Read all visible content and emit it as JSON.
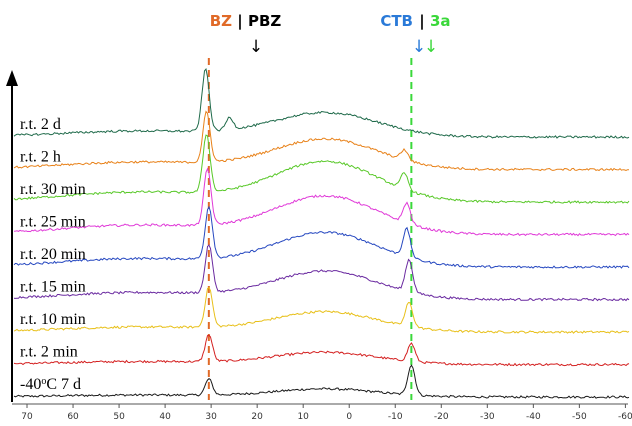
{
  "chart_data": {
    "type": "line",
    "title": "",
    "xlabel": "",
    "ylabel": "",
    "x_axis": {
      "reversed": true,
      "xlim": [
        75,
        -61
      ],
      "ticks": [
        70,
        60,
        50,
        40,
        30,
        20,
        10,
        0,
        -10,
        -20,
        -30,
        -40,
        -50,
        -60
      ],
      "tick_labels": [
        "70",
        "60",
        "50",
        "40",
        "30",
        "20",
        "10",
        "0",
        "-10",
        "-20",
        "-30",
        "-40",
        "-50",
        "-60"
      ]
    },
    "grid": false,
    "series": [
      {
        "name": "-40°C 7 d",
        "label_main": "-40",
        "label_sup": "o",
        "label_rest": "C 7 d",
        "color": "#1a1a1a",
        "peaks": [
          {
            "x": 30.5,
            "h": 16
          },
          {
            "x": -13.5,
            "h": 30
          }
        ],
        "hump": 8,
        "x_features": [
          30.5,
          -13.5
        ]
      },
      {
        "name": "r.t. 2 min",
        "label_main": "r.t. 2 min",
        "color": "#d42020",
        "peaks": [
          {
            "x": 30.5,
            "h": 27
          },
          {
            "x": -13.5,
            "h": 18
          }
        ],
        "hump": 12,
        "x_features": [
          30.5,
          -13.5
        ]
      },
      {
        "name": "r.t. 10 min",
        "label_main": "r.t. 10 min",
        "color": "#e8c01a",
        "peaks": [
          {
            "x": 30.5,
            "h": 40
          },
          {
            "x": -13.0,
            "h": 24
          }
        ],
        "hump": 20,
        "x_features": [
          30.5,
          -13.0
        ]
      },
      {
        "name": "r.t. 15 min",
        "label_main": "r.t. 15 min",
        "color": "#6a2aa0",
        "peaks": [
          {
            "x": 30.5,
            "h": 48
          },
          {
            "x": -13.0,
            "h": 32
          }
        ],
        "hump": 28,
        "x_features": [
          30.5,
          -13.0
        ]
      },
      {
        "name": "r.t. 20 min",
        "label_main": "r.t. 20 min",
        "color": "#2648c0",
        "peaks": [
          {
            "x": 30.5,
            "h": 52
          },
          {
            "x": -12.5,
            "h": 28
          }
        ],
        "hump": 34,
        "x_features": [
          30.5,
          -12.5
        ]
      },
      {
        "name": "r.t. 25 min",
        "label_main": "r.t. 25 min",
        "color": "#e03ad8",
        "peaks": [
          {
            "x": 30.8,
            "h": 56
          },
          {
            "x": -12.5,
            "h": 20
          }
        ],
        "hump": 38,
        "x_features": [
          30.8,
          -12.5
        ]
      },
      {
        "name": "r.t. 30 min",
        "label_main": "r.t. 30 min",
        "color": "#58c828",
        "peaks": [
          {
            "x": 31.0,
            "h": 58
          },
          {
            "x": -12.0,
            "h": 16
          }
        ],
        "hump": 40,
        "x_features": [
          31.0,
          -12.0
        ]
      },
      {
        "name": "r.t. 2 h",
        "label_main": "r.t. 2 h",
        "color": "#e8821a",
        "peaks": [
          {
            "x": 31.0,
            "h": 50
          },
          {
            "x": -12.0,
            "h": 10
          }
        ],
        "hump": 30,
        "x_features": [
          31.0,
          -12.0
        ]
      },
      {
        "name": "r.t. 2 d",
        "label_main": "r.t. 2 d",
        "color": "#1f6a4a",
        "peaks": [
          {
            "x": 31.2,
            "h": 62
          },
          {
            "x": 26.0,
            "h": 12
          }
        ],
        "hump": 24,
        "x_features": [
          31.2,
          26.0
        ]
      }
    ],
    "annotations": {
      "bz": {
        "text": "BZ",
        "color": "#e06a28",
        "x": 30.5
      },
      "sep1": {
        "text": "|",
        "color": "#000000"
      },
      "pbz": {
        "text": "PBZ",
        "color": "#000000",
        "x": 26.0
      },
      "ctb": {
        "text": "CTB",
        "color": "#2a7ad8",
        "x": -12.0
      },
      "sep2": {
        "text": "|",
        "color": "#000000"
      },
      "three_a": {
        "text": "3a",
        "color": "#3ad83a",
        "x": -13.5
      },
      "arrow_pbz": "↓",
      "arrow_ctb": "↓",
      "arrow_3a": "↓"
    },
    "guide_lines": [
      {
        "x": 30.5,
        "color": "#e06a28",
        "style": "dashed"
      },
      {
        "x": -13.5,
        "color": "#3ad83a",
        "style": "dashed"
      }
    ]
  }
}
